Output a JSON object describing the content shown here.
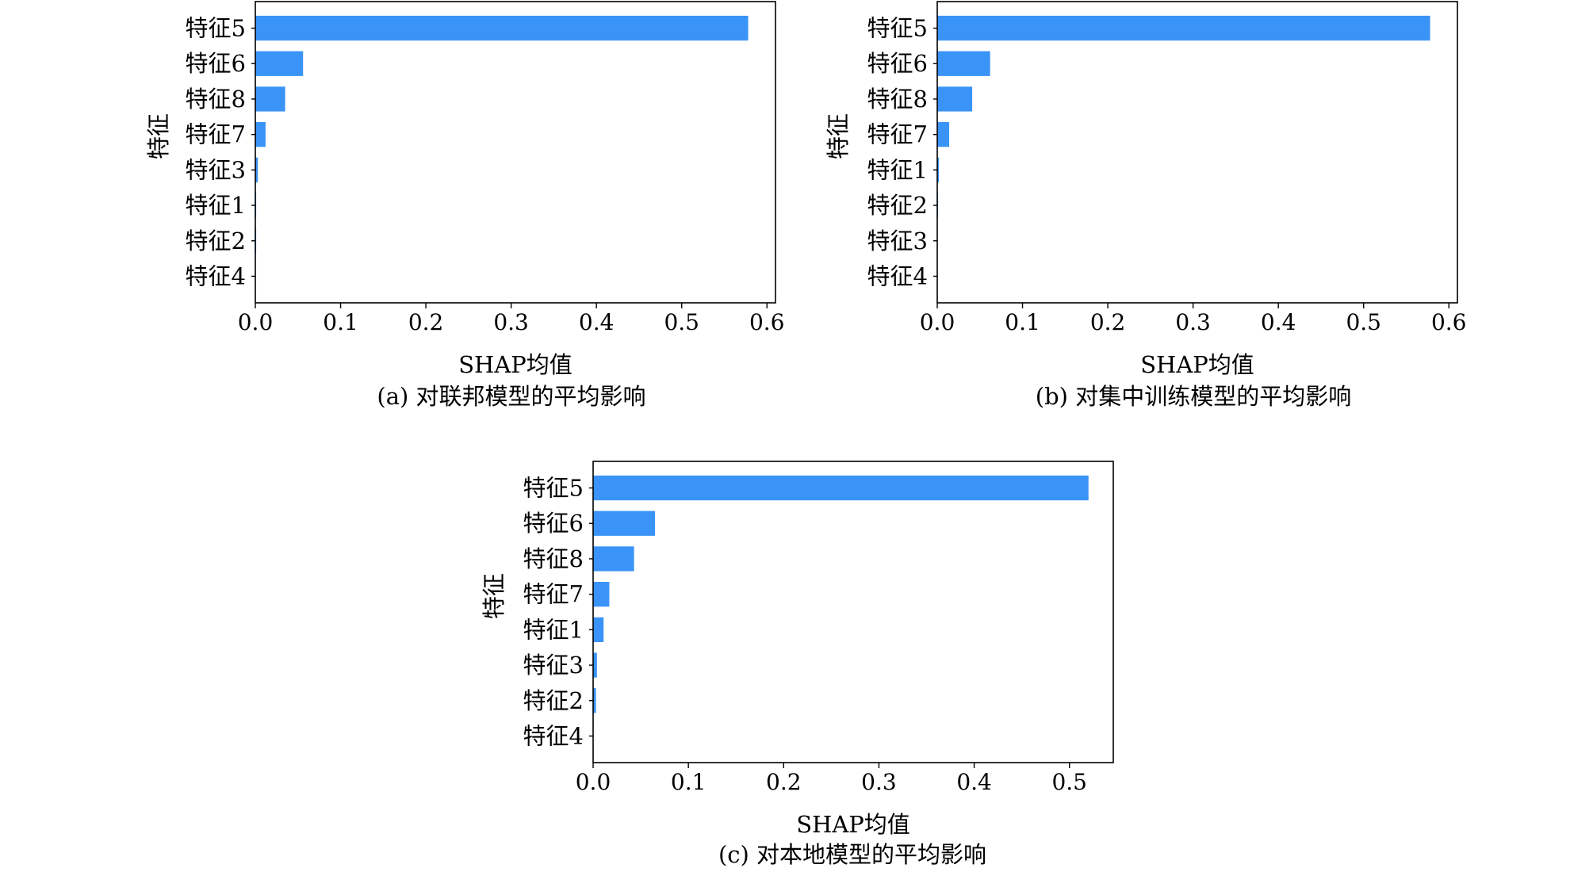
{
  "chart_data": [
    {
      "type": "bar",
      "orientation": "horizontal",
      "categories": [
        "特征5",
        "特征6",
        "特征8",
        "特征7",
        "特征3",
        "特征1",
        "特征2",
        "特征4"
      ],
      "values": [
        0.578,
        0.056,
        0.035,
        0.012,
        0.003,
        0.001,
        0.001,
        0.0
      ],
      "xticks": [
        "0.0",
        "0.1",
        "0.2",
        "0.3",
        "0.4",
        "0.5",
        "0.6"
      ],
      "xlim": [
        0,
        0.61
      ],
      "xlabel": "SHAP均值",
      "ylabel": "特征",
      "caption": "(a)  对联邦模型的平均影响",
      "bar_color": "#3a94f7"
    },
    {
      "type": "bar",
      "orientation": "horizontal",
      "categories": [
        "特征5",
        "特征6",
        "特征8",
        "特征7",
        "特征1",
        "特征2",
        "特征3",
        "特征4"
      ],
      "values": [
        0.578,
        0.062,
        0.041,
        0.014,
        0.002,
        0.001,
        0.0,
        0.0
      ],
      "xticks": [
        "0.0",
        "0.1",
        "0.2",
        "0.3",
        "0.4",
        "0.5",
        "0.6"
      ],
      "xlim": [
        0,
        0.61
      ],
      "xlabel": "SHAP均值",
      "ylabel": "特征",
      "caption": "(b)  对集中训练模型的平均影响",
      "bar_color": "#3a94f7"
    },
    {
      "type": "bar",
      "orientation": "horizontal",
      "categories": [
        "特征5",
        "特征6",
        "特征8",
        "特征7",
        "特征1",
        "特征3",
        "特征2",
        "特征4"
      ],
      "values": [
        0.52,
        0.065,
        0.043,
        0.017,
        0.011,
        0.004,
        0.003,
        0.0
      ],
      "xticks": [
        "0.0",
        "0.1",
        "0.2",
        "0.3",
        "0.4",
        "0.5"
      ],
      "xlim": [
        0,
        0.546
      ],
      "xlabel": "SHAP均值",
      "ylabel": "特征",
      "caption": "(c)  对本地模型的平均影响",
      "bar_color": "#3a94f7"
    }
  ]
}
